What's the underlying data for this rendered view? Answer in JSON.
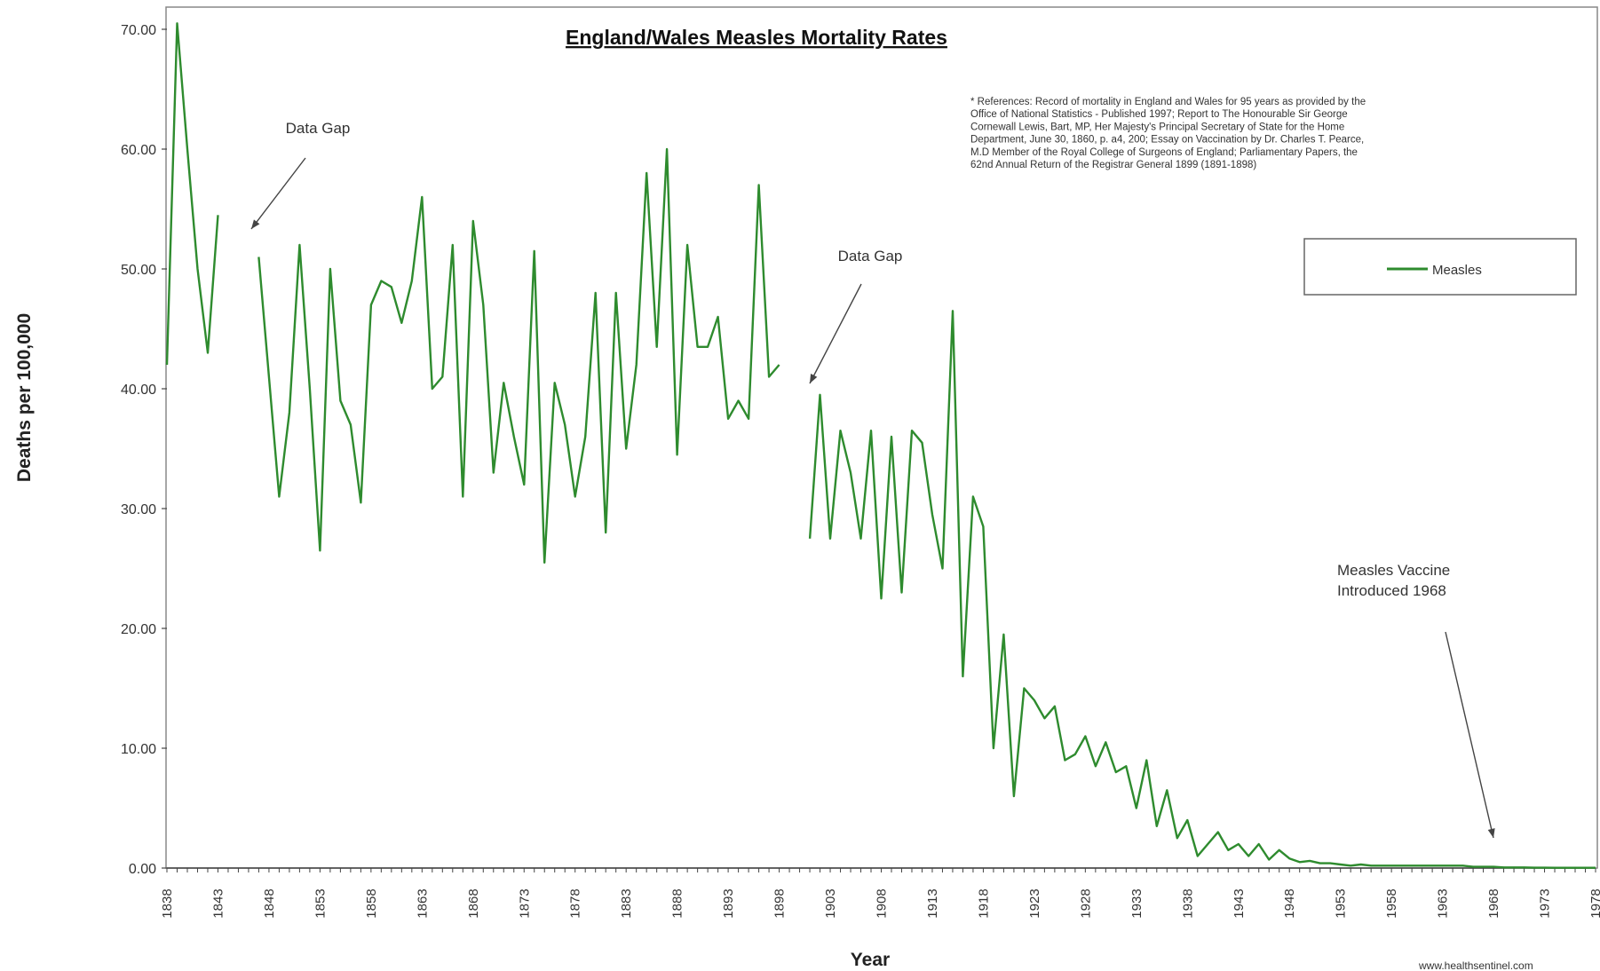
{
  "chart_data": {
    "type": "line",
    "title": "England/Wales Measles Mortality Rates",
    "xlabel": "Year",
    "ylabel": "Deaths per 100,000",
    "ylim": [
      0,
      70
    ],
    "y_ticks": [
      "0.00",
      "10.00",
      "20.00",
      "30.00",
      "40.00",
      "50.00",
      "60.00",
      "70.00"
    ],
    "x_ticks": [
      "1838",
      "1843",
      "1848",
      "1853",
      "1858",
      "1863",
      "1868",
      "1873",
      "1878",
      "1883",
      "1888",
      "1893",
      "1898",
      "1903",
      "1908",
      "1913",
      "1918",
      "1923",
      "1928",
      "1933",
      "1938",
      "1943",
      "1948",
      "1953",
      "1958",
      "1963",
      "1968",
      "1973",
      "1978"
    ],
    "x_range": [
      1838,
      1978
    ],
    "grid": false,
    "legend_position": "top-right",
    "series": [
      {
        "name": "Measles",
        "color": "#2e8b2e",
        "points": [
          [
            1838,
            42
          ],
          [
            1839,
            70.5
          ],
          [
            1840,
            60
          ],
          [
            1841,
            50
          ],
          [
            1842,
            43
          ],
          [
            1843,
            54.5
          ],
          [
            1844,
            null
          ],
          [
            1847,
            51
          ],
          [
            1848,
            41
          ],
          [
            1849,
            31
          ],
          [
            1850,
            38
          ],
          [
            1851,
            52
          ],
          [
            1852,
            40
          ],
          [
            1853,
            26.5
          ],
          [
            1854,
            50
          ],
          [
            1855,
            39
          ],
          [
            1856,
            37
          ],
          [
            1857,
            30.5
          ],
          [
            1858,
            47
          ],
          [
            1859,
            49
          ],
          [
            1860,
            48.5
          ],
          [
            1861,
            45.5
          ],
          [
            1862,
            49
          ],
          [
            1863,
            56
          ],
          [
            1864,
            40
          ],
          [
            1865,
            41
          ],
          [
            1866,
            52
          ],
          [
            1867,
            31
          ],
          [
            1868,
            54
          ],
          [
            1869,
            47
          ],
          [
            1870,
            33
          ],
          [
            1871,
            40.5
          ],
          [
            1872,
            36
          ],
          [
            1873,
            32
          ],
          [
            1874,
            51.5
          ],
          [
            1875,
            25.5
          ],
          [
            1876,
            40.5
          ],
          [
            1877,
            37
          ],
          [
            1878,
            31
          ],
          [
            1879,
            36
          ],
          [
            1880,
            48
          ],
          [
            1881,
            28
          ],
          [
            1882,
            48
          ],
          [
            1883,
            35
          ],
          [
            1884,
            42
          ],
          [
            1885,
            58
          ],
          [
            1886,
            43.5
          ],
          [
            1887,
            60
          ],
          [
            1888,
            34.5
          ],
          [
            1889,
            52
          ],
          [
            1890,
            43.5
          ],
          [
            1891,
            43.5
          ],
          [
            1892,
            46
          ],
          [
            1893,
            37.5
          ],
          [
            1894,
            39
          ],
          [
            1895,
            37.5
          ],
          [
            1896,
            57
          ],
          [
            1897,
            41
          ],
          [
            1898,
            42
          ],
          [
            1899,
            null
          ],
          [
            1901,
            27.5
          ],
          [
            1902,
            39.5
          ],
          [
            1903,
            27.5
          ],
          [
            1904,
            36.5
          ],
          [
            1905,
            33
          ],
          [
            1906,
            27.5
          ],
          [
            1907,
            36.5
          ],
          [
            1908,
            22.5
          ],
          [
            1909,
            36
          ],
          [
            1910,
            23
          ],
          [
            1911,
            36.5
          ],
          [
            1912,
            35.5
          ],
          [
            1913,
            29.5
          ],
          [
            1914,
            25
          ],
          [
            1915,
            46.5
          ],
          [
            1916,
            16
          ],
          [
            1917,
            31
          ],
          [
            1918,
            28.5
          ],
          [
            1919,
            10
          ],
          [
            1920,
            19.5
          ],
          [
            1921,
            6
          ],
          [
            1922,
            15
          ],
          [
            1923,
            14
          ],
          [
            1924,
            12.5
          ],
          [
            1925,
            13.5
          ],
          [
            1926,
            9
          ],
          [
            1927,
            9.5
          ],
          [
            1928,
            11
          ],
          [
            1929,
            8.5
          ],
          [
            1930,
            10.5
          ],
          [
            1931,
            8
          ],
          [
            1932,
            8.5
          ],
          [
            1933,
            5
          ],
          [
            1934,
            9
          ],
          [
            1935,
            3.5
          ],
          [
            1936,
            6.5
          ],
          [
            1937,
            2.5
          ],
          [
            1938,
            4
          ],
          [
            1939,
            1
          ],
          [
            1940,
            2
          ],
          [
            1941,
            3
          ],
          [
            1942,
            1.5
          ],
          [
            1943,
            2
          ],
          [
            1944,
            1
          ],
          [
            1945,
            2
          ],
          [
            1946,
            0.7
          ],
          [
            1947,
            1.5
          ],
          [
            1948,
            0.8
          ],
          [
            1949,
            0.5
          ],
          [
            1950,
            0.6
          ],
          [
            1951,
            0.4
          ],
          [
            1952,
            0.4
          ],
          [
            1953,
            0.3
          ],
          [
            1954,
            0.2
          ],
          [
            1955,
            0.3
          ],
          [
            1956,
            0.2
          ],
          [
            1957,
            0.2
          ],
          [
            1958,
            0.2
          ],
          [
            1959,
            0.2
          ],
          [
            1960,
            0.2
          ],
          [
            1961,
            0.2
          ],
          [
            1962,
            0.2
          ],
          [
            1963,
            0.2
          ],
          [
            1964,
            0.2
          ],
          [
            1965,
            0.2
          ],
          [
            1966,
            0.1
          ],
          [
            1967,
            0.1
          ],
          [
            1968,
            0.1
          ],
          [
            1969,
            0.05
          ],
          [
            1970,
            0.05
          ],
          [
            1971,
            0.05
          ],
          [
            1972,
            0.03
          ],
          [
            1973,
            0.03
          ],
          [
            1974,
            0.02
          ],
          [
            1975,
            0.02
          ],
          [
            1976,
            0.02
          ],
          [
            1977,
            0.02
          ],
          [
            1978,
            0.02
          ]
        ]
      }
    ],
    "annotations": [
      {
        "text": "Data Gap",
        "year_hint": 1844
      },
      {
        "text": "Data Gap",
        "year_hint": 1899
      },
      {
        "text_lines": [
          "Measles Vaccine",
          "Introduced 1968"
        ],
        "year_hint": 1968
      }
    ],
    "references": [
      "* References: Record of mortality in England and Wales for 95 years as provided by the",
      "Office of National Statistics - Published 1997; Report to The Honourable Sir George",
      "Cornewall Lewis, Bart, MP, Her Majesty's Principal Secretary of State for the Home",
      "Department, June 30, 1860, p. a4, 200; Essay on Vaccination by Dr. Charles T. Pearce,",
      "M.D Member of the Royal College of Surgeons of England; Parliamentary Papers, the",
      "62nd Annual Return of the Registrar General 1899 (1891-1898)"
    ],
    "credit": "www.healthsentinel.com"
  }
}
